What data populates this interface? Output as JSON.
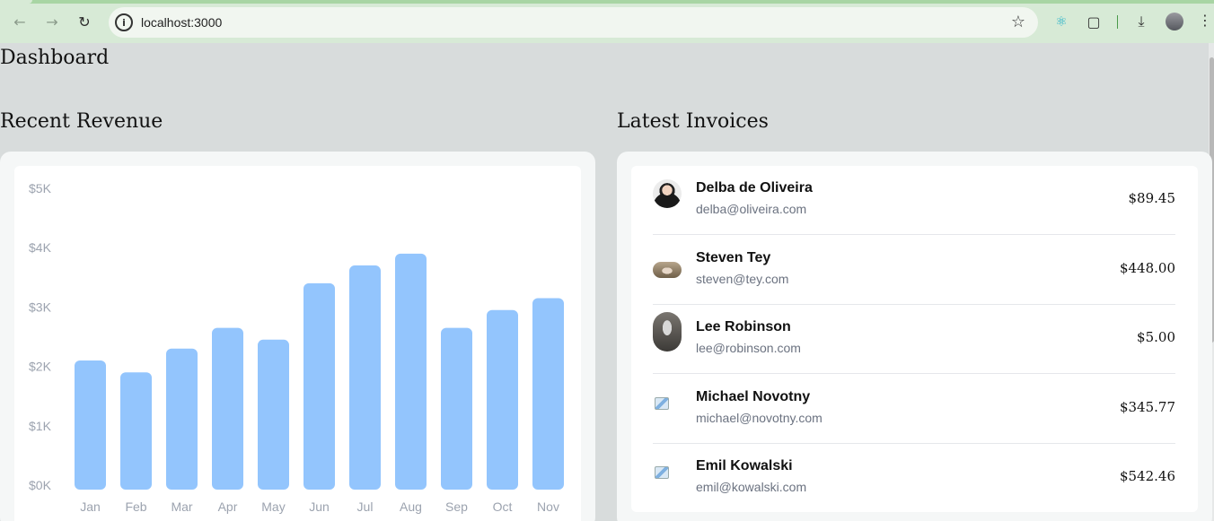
{
  "browser": {
    "url": "localhost:3000",
    "icons": [
      "back-arrow-icon",
      "forward-arrow-icon",
      "reload-icon",
      "site-info-icon",
      "bookmark-star-icon",
      "react-devtools-icon",
      "extensions-icon",
      "download-icon",
      "profile-avatar-icon",
      "more-menu-icon"
    ]
  },
  "page": {
    "title": "Dashboard",
    "revenue_title": "Recent Revenue",
    "invoices_title": "Latest Invoices"
  },
  "chart_data": {
    "type": "bar",
    "categories": [
      "Jan",
      "Feb",
      "Mar",
      "Apr",
      "May",
      "Jun",
      "Jul",
      "Aug",
      "Sep",
      "Oct",
      "Nov"
    ],
    "values": [
      2100,
      1900,
      2300,
      2650,
      2450,
      3400,
      3700,
      3900,
      2650,
      2950,
      3150
    ],
    "ylim": [
      0,
      5000
    ],
    "yticks": [
      "$0K",
      "$1K",
      "$2K",
      "$3K",
      "$4K",
      "$5K"
    ],
    "color": "#93c5fd",
    "grid": false,
    "title": "",
    "xlabel": "",
    "ylabel": ""
  },
  "invoices": [
    {
      "name": "Delba de Oliveira",
      "email": "delba@oliveira.com",
      "amount": "$89.45",
      "avatar": "photo"
    },
    {
      "name": "Steven Tey",
      "email": "steven@tey.com",
      "amount": "$448.00",
      "avatar": "photo"
    },
    {
      "name": "Lee Robinson",
      "email": "lee@robinson.com",
      "amount": "$5.00",
      "avatar": "photo"
    },
    {
      "name": "Michael Novotny",
      "email": "michael@novotny.com",
      "amount": "$345.77",
      "avatar": "broken"
    },
    {
      "name": "Emil Kowalski",
      "email": "emil@kowalski.com",
      "amount": "$542.46",
      "avatar": "broken"
    }
  ]
}
